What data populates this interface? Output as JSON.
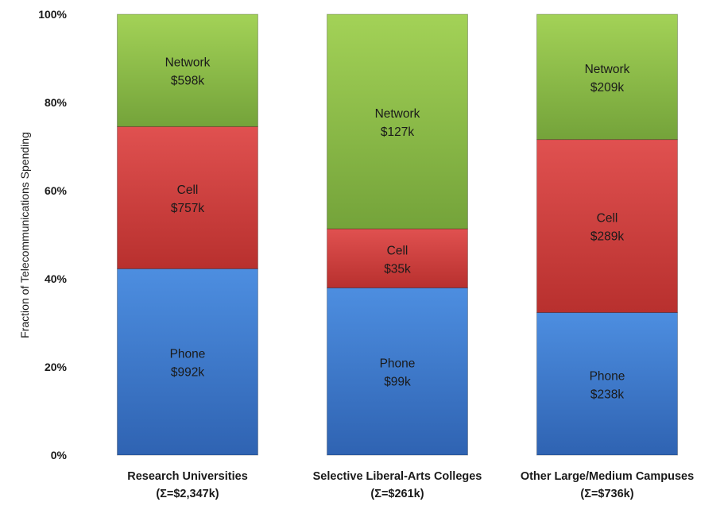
{
  "chart_data": {
    "type": "bar",
    "stacked": true,
    "normalized": true,
    "ylabel": "Fraction of Telecommunications Spending",
    "ylim": [
      0,
      100
    ],
    "yticks": [
      "0%",
      "20%",
      "40%",
      "60%",
      "80%",
      "100%"
    ],
    "grid": false,
    "legend": "none",
    "categories": [
      {
        "name": "Research Universities",
        "total": "(Σ=$2,347k)"
      },
      {
        "name": "Selective Liberal-Arts Colleges",
        "total": "(Σ=$261k)"
      },
      {
        "name": "Other Large/Medium Campuses",
        "total": "(Σ=$736k)"
      }
    ],
    "series": [
      {
        "name": "Phone",
        "color": "#3f7fd6",
        "values": [
          992,
          99,
          238
        ],
        "value_labels": [
          "$992k",
          "$99k",
          "$238k"
        ]
      },
      {
        "name": "Cell",
        "color": "#d94441",
        "values": [
          757,
          35,
          289
        ],
        "value_labels": [
          "$757k",
          "$35k",
          "$289k"
        ]
      },
      {
        "name": "Network",
        "color": "#92c24a",
        "values": [
          598,
          127,
          209
        ],
        "value_labels": [
          "$598k",
          "$127k",
          "$209k"
        ]
      }
    ]
  }
}
